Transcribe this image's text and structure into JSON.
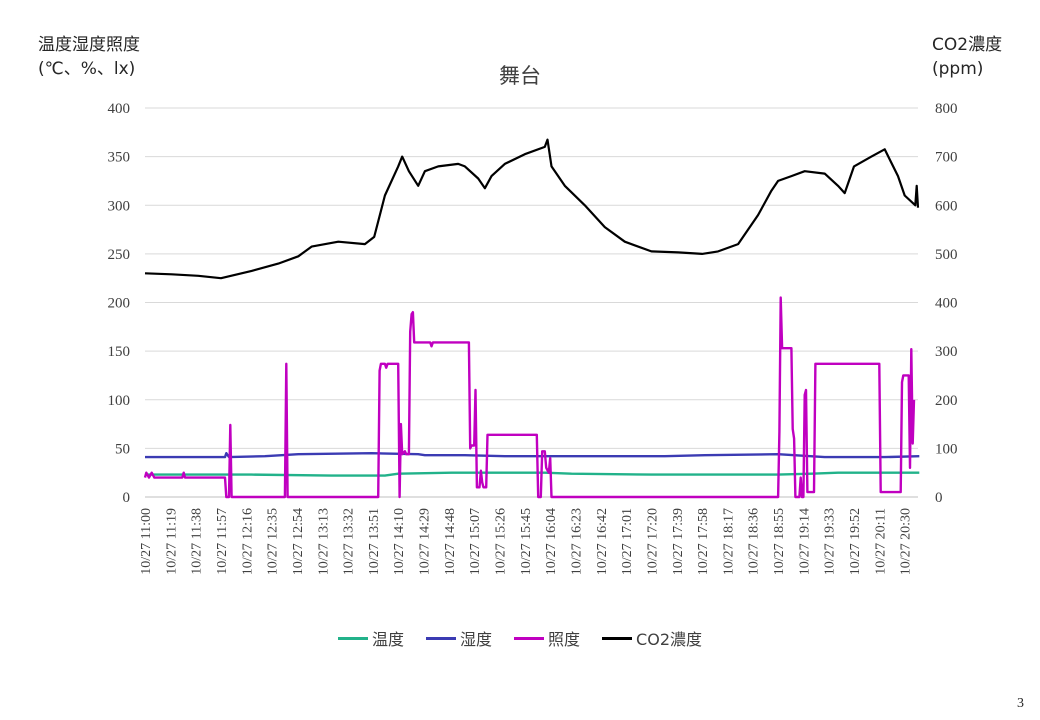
{
  "page": {
    "number": "3"
  },
  "chart_data": {
    "type": "line",
    "title": "舞台",
    "y_left_title_line1": "温度湿度照度",
    "y_left_title_line2": "(℃、%、lx)",
    "y_right_title_line1": "CO2濃度",
    "y_right_title_line2": "(ppm)",
    "y_left_range": [
      0,
      400
    ],
    "y_left_ticks": [
      "0",
      "50",
      "100",
      "150",
      "200",
      "250",
      "300",
      "350",
      "400"
    ],
    "y_right_range": [
      0,
      800
    ],
    "y_right_ticks": [
      "0",
      "100",
      "200",
      "300",
      "400",
      "500",
      "600",
      "700",
      "800"
    ],
    "grid": true,
    "legend_position": "bottom",
    "x_start": "10/27 11:00",
    "x_end": "10/27 20:40",
    "x_tick_labels": [
      "10/27 11:00",
      "10/27 11:19",
      "10/27 11:38",
      "10/27 11:57",
      "10/27 12:16",
      "10/27 12:35",
      "10/27 12:54",
      "10/27 13:13",
      "10/27 13:32",
      "10/27 13:51",
      "10/27 14:10",
      "10/27 14:29",
      "10/27 14:48",
      "10/27 15:07",
      "10/27 15:26",
      "10/27 15:45",
      "10/27 16:04",
      "10/27 16:23",
      "10/27 16:42",
      "10/27 17:01",
      "10/27 17:20",
      "10/27 17:39",
      "10/27 17:58",
      "10/27 18:17",
      "10/27 18:36",
      "10/27 18:55",
      "10/27 19:14",
      "10/27 19:33",
      "10/27 19:52",
      "10/27 20:11",
      "10/27 20:30"
    ],
    "series": [
      {
        "name": "温度",
        "axis": "left",
        "color": "#22b28a",
        "points": [
          [
            "10/27 11:00",
            23
          ],
          [
            "10/27 12:20",
            23
          ],
          [
            "10/27 13:20",
            22
          ],
          [
            "10/27 14:00",
            22
          ],
          [
            "10/27 14:10",
            24
          ],
          [
            "10/27 14:50",
            25
          ],
          [
            "10/27 16:00",
            25
          ],
          [
            "10/27 16:20",
            24
          ],
          [
            "10/27 17:20",
            23
          ],
          [
            "10/27 18:55",
            23
          ],
          [
            "10/27 19:20",
            24
          ],
          [
            "10/27 19:40",
            25
          ],
          [
            "10/27 20:41",
            25
          ]
        ]
      },
      {
        "name": "湿度",
        "axis": "left",
        "color": "#3b3bb3",
        "points": [
          [
            "10/27 11:00",
            41
          ],
          [
            "10/27 12:00",
            41
          ],
          [
            "10/27 12:01",
            45
          ],
          [
            "10/27 12:03",
            41
          ],
          [
            "10/27 12:30",
            42
          ],
          [
            "10/27 12:55",
            44
          ],
          [
            "10/27 13:50",
            45
          ],
          [
            "10/27 14:25",
            44
          ],
          [
            "10/27 14:30",
            43
          ],
          [
            "10/27 15:00",
            43
          ],
          [
            "10/27 15:30",
            42
          ],
          [
            "10/27 16:30",
            42
          ],
          [
            "10/27 17:30",
            42
          ],
          [
            "10/27 18:00",
            43
          ],
          [
            "10/27 18:55",
            44
          ],
          [
            "10/27 19:30",
            41
          ],
          [
            "10/27 20:15",
            41
          ],
          [
            "10/27 20:41",
            42
          ]
        ]
      },
      {
        "name": "照度",
        "axis": "left",
        "color": "#c000c0",
        "points": [
          [
            "10/27 11:00",
            20
          ],
          [
            "10/27 11:01",
            25
          ],
          [
            "10/27 11:03",
            20
          ],
          [
            "10/27 11:05",
            25
          ],
          [
            "10/27 11:07",
            20
          ],
          [
            "10/27 11:28",
            20
          ],
          [
            "10/27 11:29",
            25
          ],
          [
            "10/27 11:30",
            20
          ],
          [
            "10/27 12:00",
            20
          ],
          [
            "10/27 12:01",
            0
          ],
          [
            "10/27 12:03",
            0
          ],
          [
            "10/27 12:04",
            74
          ],
          [
            "10/27 12:05",
            0
          ],
          [
            "10/27 12:45",
            0
          ],
          [
            "10/27 12:46",
            137
          ],
          [
            "10/27 12:47",
            0
          ],
          [
            "10/27 13:55",
            0
          ],
          [
            "10/27 13:56",
            130
          ],
          [
            "10/27 13:57",
            137
          ],
          [
            "10/27 14:00",
            137
          ],
          [
            "10/27 14:01",
            133
          ],
          [
            "10/27 14:02",
            137
          ],
          [
            "10/27 14:10",
            137
          ],
          [
            "10/27 14:11",
            0
          ],
          [
            "10/27 14:12",
            75
          ],
          [
            "10/27 14:13",
            44
          ],
          [
            "10/27 14:15",
            47
          ],
          [
            "10/27 14:16",
            44
          ],
          [
            "10/27 14:18",
            44
          ],
          [
            "10/27 14:19",
            170
          ],
          [
            "10/27 14:20",
            188
          ],
          [
            "10/27 14:21",
            190
          ],
          [
            "10/27 14:22",
            159
          ],
          [
            "10/27 14:34",
            159
          ],
          [
            "10/27 14:35",
            155
          ],
          [
            "10/27 14:36",
            159
          ],
          [
            "10/27 14:55",
            159
          ],
          [
            "10/27 15:03",
            159
          ],
          [
            "10/27 15:04",
            50
          ],
          [
            "10/27 15:05",
            53
          ],
          [
            "10/27 15:07",
            53
          ],
          [
            "10/27 15:08",
            110
          ],
          [
            "10/27 15:09",
            10
          ],
          [
            "10/27 15:11",
            10
          ],
          [
            "10/27 15:12",
            27
          ],
          [
            "10/27 15:13",
            15
          ],
          [
            "10/27 15:14",
            10
          ],
          [
            "10/27 15:16",
            10
          ],
          [
            "10/27 15:17",
            64
          ],
          [
            "10/27 15:54",
            64
          ],
          [
            "10/27 15:55",
            0
          ],
          [
            "10/27 15:57",
            0
          ],
          [
            "10/27 15:58",
            47
          ],
          [
            "10/27 16:00",
            47
          ],
          [
            "10/27 16:01",
            30
          ],
          [
            "10/27 16:03",
            25
          ],
          [
            "10/27 16:04",
            40
          ],
          [
            "10/27 16:05",
            0
          ],
          [
            "10/27 18:55",
            0
          ],
          [
            "10/27 18:56",
            67
          ],
          [
            "10/27 18:57",
            205
          ],
          [
            "10/27 18:58",
            153
          ],
          [
            "10/27 19:05",
            153
          ],
          [
            "10/27 19:06",
            70
          ],
          [
            "10/27 19:07",
            60
          ],
          [
            "10/27 19:08",
            0
          ],
          [
            "10/27 19:11",
            0
          ],
          [
            "10/27 19:12",
            20
          ],
          [
            "10/27 19:13",
            0
          ],
          [
            "10/27 19:14",
            0
          ],
          [
            "10/27 19:15",
            105
          ],
          [
            "10/27 19:16",
            110
          ],
          [
            "10/27 19:17",
            5
          ],
          [
            "10/27 19:22",
            5
          ],
          [
            "10/27 19:23",
            137
          ],
          [
            "10/27 19:45",
            137
          ],
          [
            "10/27 20:11",
            137
          ],
          [
            "10/27 20:12",
            5
          ],
          [
            "10/27 20:27",
            5
          ],
          [
            "10/27 20:28",
            118
          ],
          [
            "10/27 20:29",
            125
          ],
          [
            "10/27 20:33",
            125
          ],
          [
            "10/27 20:34",
            30
          ],
          [
            "10/27 20:35",
            152
          ],
          [
            "10/27 20:36",
            55
          ],
          [
            "10/27 20:37",
            100
          ]
        ]
      },
      {
        "name": "CO2濃度",
        "axis": "right",
        "color": "#000000",
        "points": [
          [
            "10/27 11:00",
            460
          ],
          [
            "10/27 11:20",
            458
          ],
          [
            "10/27 11:40",
            455
          ],
          [
            "10/27 11:57",
            450
          ],
          [
            "10/27 12:20",
            465
          ],
          [
            "10/27 12:40",
            480
          ],
          [
            "10/27 12:55",
            495
          ],
          [
            "10/27 13:05",
            515
          ],
          [
            "10/27 13:25",
            525
          ],
          [
            "10/27 13:45",
            520
          ],
          [
            "10/27 13:52",
            535
          ],
          [
            "10/27 14:00",
            620
          ],
          [
            "10/27 14:10",
            680
          ],
          [
            "10/27 14:13",
            700
          ],
          [
            "10/27 14:18",
            670
          ],
          [
            "10/27 14:25",
            640
          ],
          [
            "10/27 14:30",
            670
          ],
          [
            "10/27 14:40",
            680
          ],
          [
            "10/27 14:55",
            685
          ],
          [
            "10/27 15:00",
            680
          ],
          [
            "10/27 15:10",
            655
          ],
          [
            "10/27 15:15",
            635
          ],
          [
            "10/27 15:20",
            660
          ],
          [
            "10/27 15:30",
            685
          ],
          [
            "10/27 15:45",
            705
          ],
          [
            "10/27 16:00",
            720
          ],
          [
            "10/27 16:02",
            735
          ],
          [
            "10/27 16:05",
            680
          ],
          [
            "10/27 16:15",
            640
          ],
          [
            "10/27 16:30",
            600
          ],
          [
            "10/27 16:45",
            555
          ],
          [
            "10/27 17:00",
            525
          ],
          [
            "10/27 17:20",
            505
          ],
          [
            "10/27 17:40",
            503
          ],
          [
            "10/27 17:58",
            500
          ],
          [
            "10/27 18:10",
            505
          ],
          [
            "10/27 18:25",
            520
          ],
          [
            "10/27 18:40",
            580
          ],
          [
            "10/27 18:50",
            630
          ],
          [
            "10/27 18:55",
            650
          ],
          [
            "10/27 19:05",
            660
          ],
          [
            "10/27 19:15",
            670
          ],
          [
            "10/27 19:30",
            665
          ],
          [
            "10/27 19:40",
            640
          ],
          [
            "10/27 19:45",
            625
          ],
          [
            "10/27 19:52",
            680
          ],
          [
            "10/27 20:05",
            700
          ],
          [
            "10/27 20:15",
            715
          ],
          [
            "10/27 20:25",
            660
          ],
          [
            "10/27 20:30",
            620
          ],
          [
            "10/27 20:38",
            600
          ],
          [
            "10/27 20:39",
            640
          ],
          [
            "10/27 20:40",
            595
          ]
        ]
      }
    ]
  }
}
